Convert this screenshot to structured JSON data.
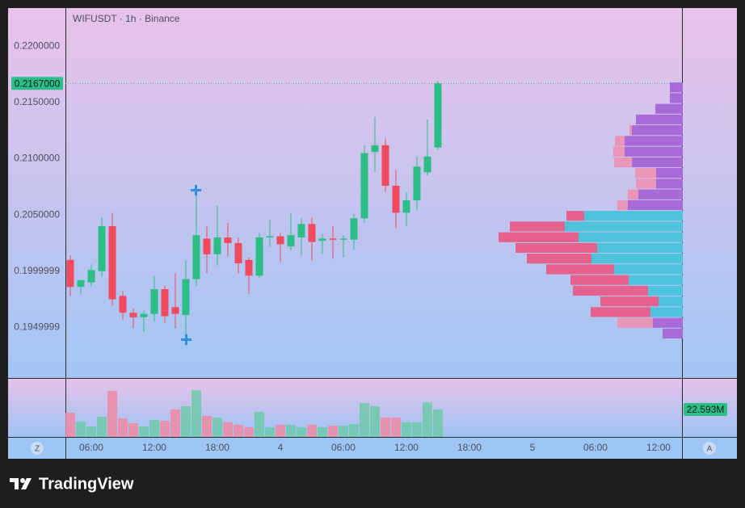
{
  "chart_data": {
    "type": "candlestick",
    "title": "WIFUSDT · 1h · Binance",
    "colors": {
      "up": "#2dbd87",
      "down": "#ef4a5e",
      "up_volume": "#6ec9a8",
      "down_volume": "#ee8aa2"
    },
    "x": [
      4,
      5,
      6,
      7,
      8,
      9,
      10,
      11,
      12,
      13,
      14,
      15,
      16,
      17,
      18,
      19,
      20,
      21,
      22,
      23,
      24,
      25,
      26,
      27,
      28,
      29,
      30,
      31,
      32,
      33,
      34,
      35,
      36,
      37,
      38,
      39
    ],
    "open": [
      0.201,
      0.1986,
      0.199,
      0.2,
      0.204,
      0.1978,
      0.1963,
      0.1959,
      0.1962,
      0.1984,
      0.1968,
      0.1961,
      0.1993,
      0.2029,
      0.2015,
      0.203,
      0.2025,
      0.201,
      0.1996,
      0.203,
      0.2031,
      0.2022,
      0.203,
      0.2042,
      0.2027,
      0.2029,
      0.2028,
      0.2028,
      0.2047,
      0.2106,
      0.2112,
      0.2076,
      0.2052,
      0.2063,
      0.2088,
      0.211
    ],
    "high": [
      0.2014,
      0.199,
      0.2006,
      0.2048,
      0.2052,
      0.1983,
      0.1967,
      0.1965,
      0.1996,
      0.1987,
      0.1998,
      0.201,
      0.2075,
      0.204,
      0.2058,
      0.2043,
      0.203,
      0.2012,
      0.2034,
      0.2046,
      0.2034,
      0.2052,
      0.2047,
      0.2048,
      0.2033,
      0.204,
      0.2032,
      0.2051,
      0.2112,
      0.2137,
      0.2118,
      0.209,
      0.207,
      0.2102,
      0.2135,
      0.2169
    ],
    "low": [
      0.1978,
      0.198,
      0.1986,
      0.1995,
      0.1969,
      0.1957,
      0.1949,
      0.1946,
      0.1955,
      0.1954,
      0.1949,
      0.1934,
      0.1987,
      0.1998,
      0.2005,
      0.2013,
      0.1998,
      0.198,
      0.1994,
      0.2022,
      0.2008,
      0.2018,
      0.2014,
      0.2009,
      0.2015,
      0.2011,
      0.2012,
      0.2019,
      0.2043,
      0.2088,
      0.2071,
      0.2038,
      0.204,
      0.2054,
      0.2085,
      0.2108
    ],
    "close": [
      0.1986,
      0.1992,
      0.2001,
      0.204,
      0.1975,
      0.1963,
      0.1959,
      0.1962,
      0.1984,
      0.196,
      0.1962,
      0.1993,
      0.2032,
      0.2015,
      0.203,
      0.2025,
      0.2007,
      0.1996,
      0.203,
      0.2031,
      0.2024,
      0.2032,
      0.2042,
      0.2026,
      0.2029,
      0.2028,
      0.2029,
      0.2047,
      0.2105,
      0.2112,
      0.2076,
      0.2052,
      0.2063,
      0.2093,
      0.2102,
      0.2167
    ],
    "last_price_label": "0.2167000",
    "volume": [
      19.9,
      12.6,
      8.6,
      16.6,
      37.9,
      15.3,
      11.3,
      8.6,
      14.0,
      13.3,
      22.6,
      25.3,
      38.5,
      17.3,
      15.9,
      12.0,
      10.0,
      8.0,
      20.6,
      8.0,
      10.0,
      10.0,
      8.0,
      10.0,
      8.0,
      9.3,
      9.3,
      10.6,
      27.9,
      25.3,
      15.9,
      15.9,
      12.0,
      12.0,
      28.6,
      22.593
    ],
    "volume_last_label": "22.593M",
    "vlim": [
      0,
      48.5
    ],
    "xlim": [
      3.54,
      62.31
    ],
    "xticks": [
      {
        "value": 6,
        "label": "06:00"
      },
      {
        "value": 12,
        "label": "12:00"
      },
      {
        "value": 18,
        "label": "18:00"
      },
      {
        "value": 24,
        "label": "4"
      },
      {
        "value": 30,
        "label": "06:00"
      },
      {
        "value": 36,
        "label": "12:00"
      },
      {
        "value": 42,
        "label": "18:00"
      },
      {
        "value": 48,
        "label": "5"
      },
      {
        "value": 54,
        "label": "06:00"
      },
      {
        "value": 60,
        "label": "12:00"
      }
    ],
    "ylim": [
      0.1905,
      0.2234
    ],
    "yticks": [
      {
        "value": 0.22,
        "label": "0.2200000"
      },
      {
        "value": 0.215,
        "label": "0.2150000"
      },
      {
        "value": 0.21,
        "label": "0.2100000"
      },
      {
        "value": 0.205,
        "label": "0.2050000"
      },
      {
        "value": 0.2,
        "label": "0.1999999"
      },
      {
        "value": 0.195,
        "label": "0.1949999"
      }
    ],
    "grid": false,
    "profile": {
      "price_range": [
        0.19398,
        0.21682
      ],
      "up": [
        16,
        16,
        34,
        58,
        63,
        72,
        72,
        63,
        33,
        33,
        55,
        68,
        122,
        146,
        129,
        106,
        113,
        85,
        67,
        43,
        30,
        40,
        37,
        25
      ],
      "down": [
        0,
        0,
        0,
        0,
        3,
        12,
        14,
        22,
        26,
        25,
        13,
        13,
        22,
        68,
        99,
        101,
        80,
        84,
        72,
        93,
        72,
        74,
        44,
        0
      ],
      "value_area": [
        12,
        21
      ],
      "colors": {
        "up": "#a86ad6",
        "down": "#e996b8",
        "va_up": "#4fc3dc",
        "va_down": "#e5628e"
      }
    },
    "axis_buttons": [
      "Z",
      "A"
    ],
    "brand": "TradingView"
  }
}
